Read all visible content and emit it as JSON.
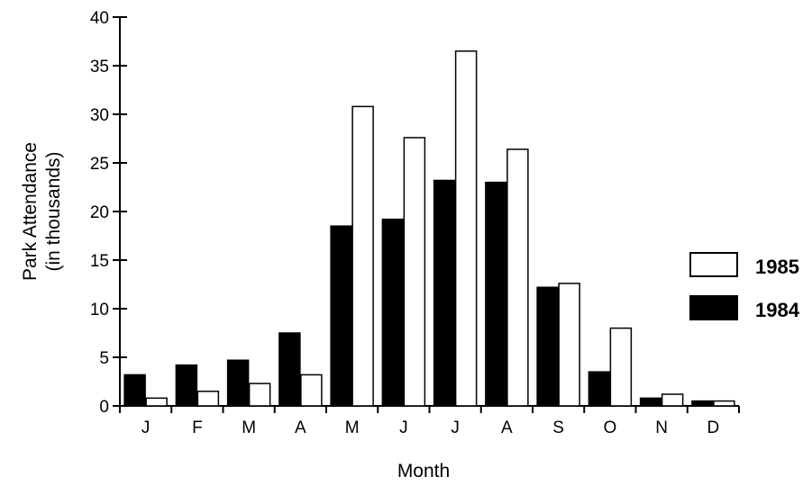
{
  "chart_data": {
    "type": "bar",
    "title": "",
    "xlabel": "Month",
    "ylabel": "Park Attendance",
    "ylabel_sub": "(in thousands)",
    "categories": [
      "J",
      "F",
      "M",
      "A",
      "M",
      "J",
      "J",
      "A",
      "S",
      "O",
      "N",
      "D"
    ],
    "series": [
      {
        "name": "1984",
        "color": "#000000",
        "values": [
          3.2,
          4.2,
          4.7,
          7.5,
          18.5,
          19.2,
          23.2,
          23.0,
          12.2,
          3.5,
          0.8,
          0.5
        ]
      },
      {
        "name": "1985",
        "color": "#ffffff",
        "values": [
          0.8,
          1.5,
          2.3,
          3.2,
          30.8,
          27.6,
          36.5,
          26.4,
          12.6,
          8.0,
          1.2,
          0.5
        ]
      }
    ],
    "ylim": [
      0,
      40
    ],
    "yticks": [
      0,
      5,
      10,
      15,
      20,
      25,
      30,
      35,
      40
    ],
    "grid": false,
    "legend": {
      "position": "right",
      "entries": [
        "1985",
        "1984"
      ]
    }
  }
}
